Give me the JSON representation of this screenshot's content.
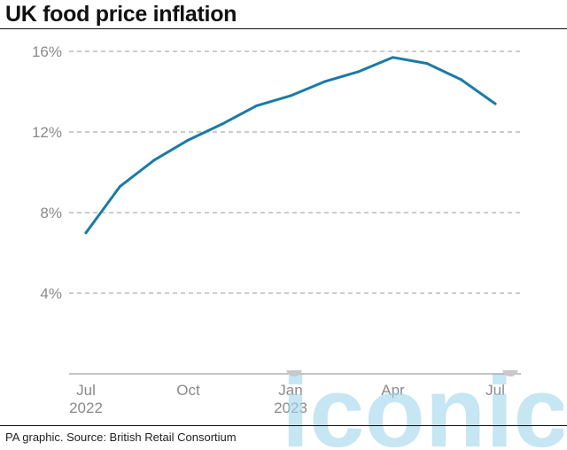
{
  "header": {
    "title": "UK food price inflation"
  },
  "footer": {
    "source": "PA graphic. Source: British Retail Consortium"
  },
  "watermark": {
    "text": "iconic",
    "color": "#9fd6ea"
  },
  "chart_data": {
    "type": "line",
    "title": "UK food price inflation",
    "xlabel": "",
    "ylabel": "",
    "ylim": [
      0,
      16
    ],
    "yticks": [
      {
        "value": 4,
        "label": "4%"
      },
      {
        "value": 8,
        "label": "8%"
      },
      {
        "value": 12,
        "label": "12%"
      },
      {
        "value": 16,
        "label": "16%"
      }
    ],
    "xticks": [
      {
        "index": 0,
        "label": "Jul",
        "sublabel": "2022"
      },
      {
        "index": 3,
        "label": "Oct",
        "sublabel": ""
      },
      {
        "index": 6,
        "label": "Jan",
        "sublabel": "2023"
      },
      {
        "index": 9,
        "label": "Apr",
        "sublabel": ""
      },
      {
        "index": 12,
        "label": "Jul",
        "sublabel": ""
      }
    ],
    "grid": true,
    "line_color": "#1a7aa8",
    "categories": [
      "Jul 2022",
      "Aug 2022",
      "Sep 2022",
      "Oct 2022",
      "Nov 2022",
      "Dec 2022",
      "Jan 2023",
      "Feb 2023",
      "Mar 2023",
      "Apr 2023",
      "May 2023",
      "Jun 2023",
      "Jul 2023"
    ],
    "series": [
      {
        "values": [
          7.0,
          9.3,
          10.6,
          11.6,
          12.4,
          13.3,
          13.8,
          14.5,
          15.0,
          15.7,
          15.4,
          14.6,
          13.4
        ]
      }
    ]
  }
}
